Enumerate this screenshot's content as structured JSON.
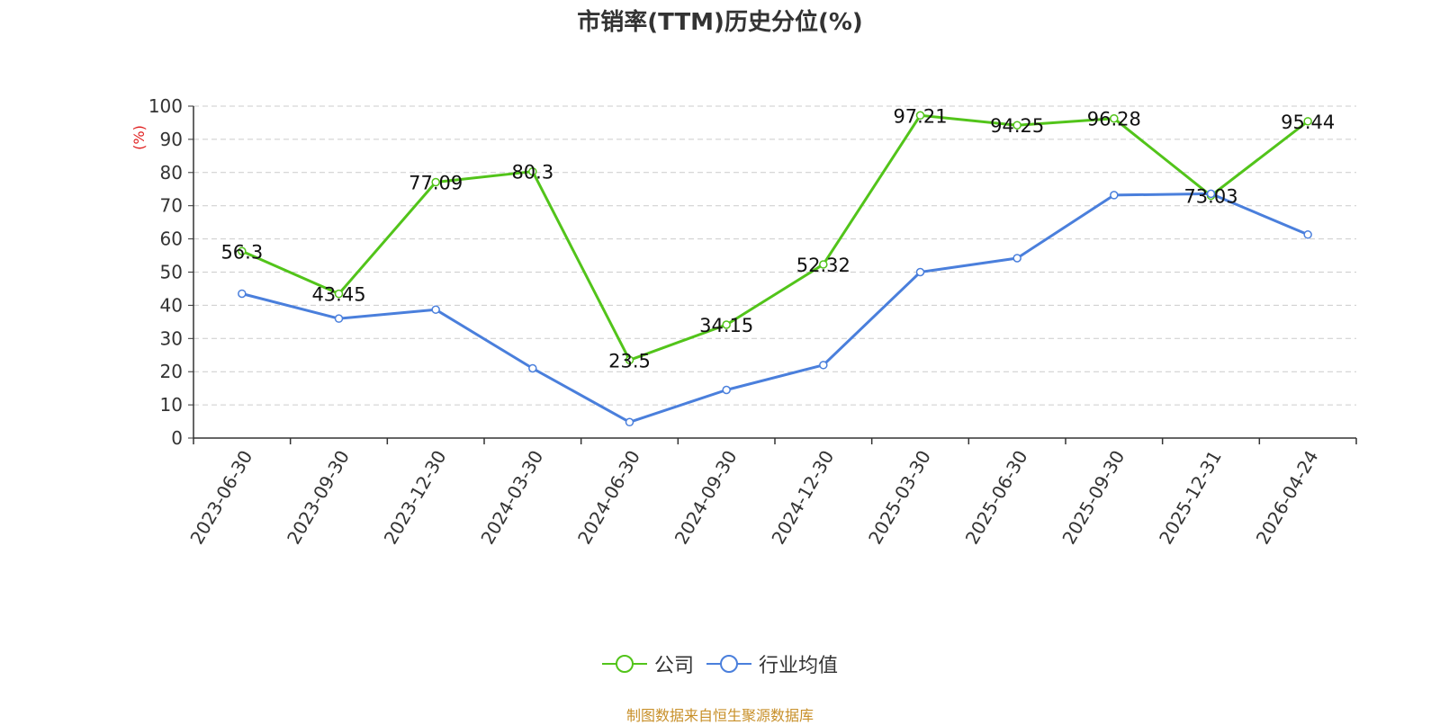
{
  "chart_data": {
    "type": "line",
    "title": "市销率(TTM)历史分位(%)",
    "ylabel": "(%)",
    "xlabel": "",
    "categories": [
      "2023-06-30",
      "2023-09-30",
      "2023-12-30",
      "2024-03-30",
      "2024-06-30",
      "2024-09-30",
      "2024-12-30",
      "2025-03-30",
      "2025-06-30",
      "2025-09-30",
      "2025-12-31",
      "2026-04-24"
    ],
    "ylim": [
      0,
      100
    ],
    "yticks": [
      0,
      10,
      20,
      30,
      40,
      50,
      60,
      70,
      80,
      90,
      100
    ],
    "grid": true,
    "legend_position": "bottom",
    "series": [
      {
        "name": "公司",
        "color": "#52c41a",
        "show_labels": true,
        "values": [
          56.3,
          43.45,
          77.09,
          80.3,
          23.5,
          34.15,
          52.32,
          97.21,
          94.25,
          96.28,
          73.03,
          95.44
        ]
      },
      {
        "name": "行业均值",
        "color": "#4a7fdc",
        "show_labels": false,
        "values": [
          43.5,
          36.0,
          38.7,
          21.0,
          4.8,
          14.5,
          22.0,
          50.0,
          54.2,
          73.2,
          73.6,
          61.3
        ]
      }
    ]
  },
  "footer": {
    "source": "制图数据来自恒生聚源数据库"
  }
}
